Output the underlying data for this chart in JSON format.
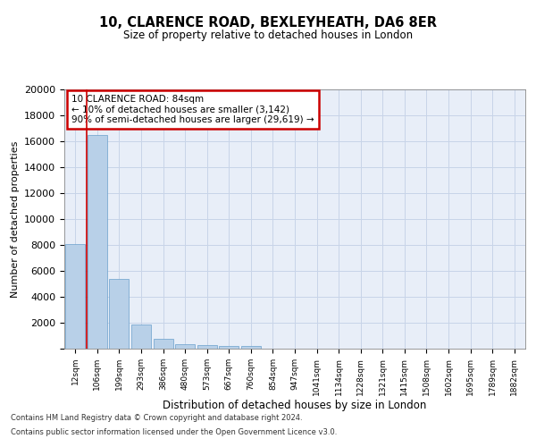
{
  "title": "10, CLARENCE ROAD, BEXLEYHEATH, DA6 8ER",
  "subtitle": "Size of property relative to detached houses in London",
  "xlabel": "Distribution of detached houses by size in London",
  "ylabel": "Number of detached properties",
  "categories": [
    "12sqm",
    "106sqm",
    "199sqm",
    "293sqm",
    "386sqm",
    "480sqm",
    "573sqm",
    "667sqm",
    "760sqm",
    "854sqm",
    "947sqm",
    "1041sqm",
    "1134sqm",
    "1228sqm",
    "1321sqm",
    "1415sqm",
    "1508sqm",
    "1602sqm",
    "1695sqm",
    "1789sqm",
    "1882sqm"
  ],
  "values": [
    8100,
    16500,
    5350,
    1850,
    750,
    320,
    260,
    230,
    210,
    0,
    0,
    0,
    0,
    0,
    0,
    0,
    0,
    0,
    0,
    0,
    0
  ],
  "bar_color": "#b8d0e8",
  "bar_edge_color": "#6aa0cc",
  "annotation_title": "10 CLARENCE ROAD: 84sqm",
  "annotation_line1": "← 10% of detached houses are smaller (3,142)",
  "annotation_line2": "90% of semi-detached houses are larger (29,619) →",
  "annotation_box_color": "#ffffff",
  "annotation_box_edge": "#cc0000",
  "red_line_x": 0.5,
  "ylim": [
    0,
    20000
  ],
  "yticks": [
    0,
    2000,
    4000,
    6000,
    8000,
    10000,
    12000,
    14000,
    16000,
    18000,
    20000
  ],
  "grid_color": "#c8d4e8",
  "background_color": "#e8eef8",
  "footer1": "Contains HM Land Registry data © Crown copyright and database right 2024.",
  "footer2": "Contains public sector information licensed under the Open Government Licence v3.0."
}
